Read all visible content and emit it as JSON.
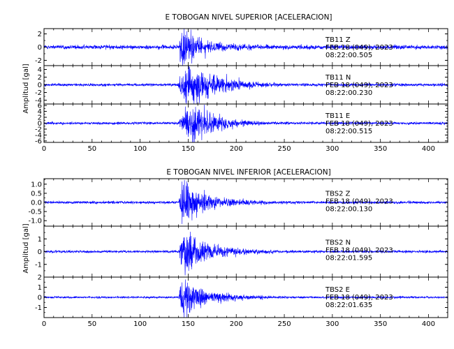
{
  "chart_data": [
    {
      "type": "line",
      "title": "E TOBOGAN NIVEL SUPERIOR [ACELERACION]",
      "ylabel": "Amplitud [gal]",
      "xlim": [
        0,
        420
      ],
      "x_ticks": [
        "0",
        "50",
        "100",
        "150",
        "200",
        "250",
        "300",
        "350",
        "400"
      ],
      "series": [
        {
          "name": "TB11 Z",
          "station": "TB11",
          "component": "Z",
          "date": "FEB 18 (049), 2023",
          "time": "08:22:00.505",
          "ylim": [
            -2.8,
            2.8
          ],
          "y_ticks": [
            "2",
            "0",
            "-2"
          ],
          "y_tick_values": [
            2,
            0,
            -2
          ],
          "noise": 0.22,
          "onset": 140,
          "peak": 2.7,
          "decay": 10,
          "envelope": [
            [
              140,
              0.0
            ],
            [
              142,
              0.7
            ],
            [
              145,
              1.0
            ],
            [
              150,
              0.85
            ],
            [
              158,
              0.5
            ],
            [
              170,
              0.3
            ],
            [
              185,
              0.17
            ],
            [
              210,
              0.1
            ],
            [
              260,
              0.0
            ]
          ]
        },
        {
          "name": "TB11 N",
          "station": "TB11",
          "component": "N",
          "date": "FEB 18 (049), 2023",
          "time": "08:22:00.230",
          "ylim": [
            -5,
            5
          ],
          "y_ticks": [
            "4",
            "2",
            "0",
            "-2",
            "-4"
          ],
          "y_tick_values": [
            4,
            2,
            0,
            -2,
            -4
          ],
          "noise": 0.25,
          "onset": 138,
          "peak": 4.6,
          "decay": 25,
          "envelope": [
            [
              138,
              0.0
            ],
            [
              143,
              0.55
            ],
            [
              148,
              0.9
            ],
            [
              152,
              1.0
            ],
            [
              158,
              0.9
            ],
            [
              165,
              0.75
            ],
            [
              172,
              0.65
            ],
            [
              178,
              0.6
            ],
            [
              186,
              0.42
            ],
            [
              195,
              0.3
            ],
            [
              210,
              0.2
            ],
            [
              230,
              0.1
            ],
            [
              280,
              0.0
            ]
          ]
        },
        {
          "name": "TB11 E",
          "station": "TB11",
          "component": "E",
          "date": "FEB 18 (049), 2023",
          "time": "08:22:00.515",
          "ylim": [
            -6.5,
            6.5
          ],
          "y_ticks": [
            "6",
            "4",
            "2",
            "0",
            "-2",
            "-4",
            "-6"
          ],
          "y_tick_values": [
            6,
            4,
            2,
            0,
            -2,
            -4,
            -6
          ],
          "noise": 0.3,
          "onset": 140,
          "peak": 6.3,
          "decay": 20,
          "envelope": [
            [
              140,
              0.0
            ],
            [
              144,
              0.6
            ],
            [
              150,
              0.95
            ],
            [
              156,
              1.0
            ],
            [
              162,
              0.8
            ],
            [
              170,
              0.6
            ],
            [
              180,
              0.45
            ],
            [
              190,
              0.28
            ],
            [
              205,
              0.15
            ],
            [
              225,
              0.07
            ],
            [
              260,
              0.0
            ]
          ]
        }
      ]
    },
    {
      "type": "line",
      "title": "E TOBOGAN NIVEL INFERIOR [ACELERACION]",
      "ylabel": "Amplitud [gal]",
      "xlim": [
        0,
        420
      ],
      "x_ticks": [
        "0",
        "50",
        "100",
        "150",
        "200",
        "250",
        "300",
        "350",
        "400"
      ],
      "series": [
        {
          "name": "TBS2 Z",
          "station": "TBS2",
          "component": "Z",
          "date": "FEB 18 (049), 2023",
          "time": "08:22:00.130",
          "ylim": [
            -1.3,
            1.3
          ],
          "y_ticks": [
            "1.0",
            "0.5",
            "0.0",
            "-0.5",
            "-1.0"
          ],
          "y_tick_values": [
            1.0,
            0.5,
            0.0,
            -0.5,
            -1.0
          ],
          "noise": 0.05,
          "onset": 140,
          "peak": 1.25,
          "decay": 15,
          "envelope": [
            [
              140,
              0.0
            ],
            [
              143,
              0.8
            ],
            [
              147,
              1.0
            ],
            [
              152,
              0.8
            ],
            [
              160,
              0.5
            ],
            [
              170,
              0.32
            ],
            [
              185,
              0.2
            ],
            [
              210,
              0.1
            ],
            [
              260,
              0.0
            ]
          ]
        },
        {
          "name": "TBS2 N",
          "station": "TBS2",
          "component": "N",
          "date": "FEB 18 (049), 2023",
          "time": "08:22:01.595",
          "ylim": [
            -2,
            2
          ],
          "y_ticks": [
            "1",
            "0",
            "-1"
          ],
          "y_tick_values": [
            1,
            0,
            -1
          ],
          "noise": 0.07,
          "onset": 140,
          "peak": 1.75,
          "decay": 15,
          "envelope": [
            [
              140,
              0.0
            ],
            [
              143,
              0.7
            ],
            [
              147,
              1.0
            ],
            [
              152,
              0.85
            ],
            [
              160,
              0.55
            ],
            [
              170,
              0.35
            ],
            [
              185,
              0.22
            ],
            [
              210,
              0.1
            ],
            [
              260,
              0.0
            ]
          ]
        },
        {
          "name": "TBS2 E",
          "station": "TBS2",
          "component": "E",
          "date": "FEB 18 (049), 2023",
          "time": "08:22:01.635",
          "ylim": [
            -2,
            2
          ],
          "y_ticks": [
            "2",
            "1",
            "0",
            "-1"
          ],
          "y_tick_values": [
            2,
            1,
            0,
            -1
          ],
          "noise": 0.07,
          "onset": 140,
          "peak": 1.9,
          "decay": 15,
          "envelope": [
            [
              140,
              0.0
            ],
            [
              143,
              0.7
            ],
            [
              147,
              1.0
            ],
            [
              152,
              0.85
            ],
            [
              160,
              0.55
            ],
            [
              170,
              0.35
            ],
            [
              185,
              0.22
            ],
            [
              210,
              0.1
            ],
            [
              260,
              0.0
            ]
          ]
        }
      ]
    }
  ],
  "colors": {
    "trace": "#0000ff",
    "axis": "#000000",
    "background": "#ffffff"
  }
}
